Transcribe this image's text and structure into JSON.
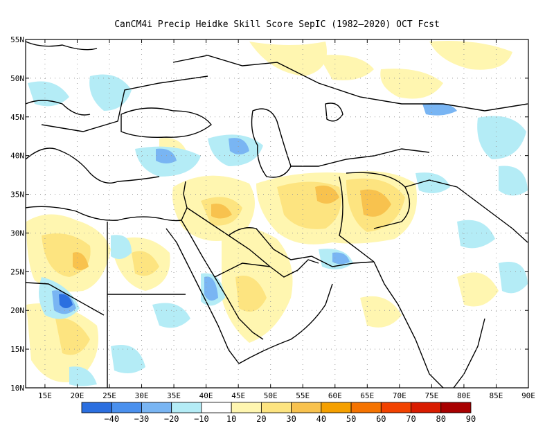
{
  "title": "CanCM4i Precip Heidke Skill Score SepIC (1982–2020) OCT Fcst",
  "map": {
    "lon_range": [
      12,
      90
    ],
    "lat_range": [
      10,
      55
    ],
    "lat_labels": [
      "55N",
      "50N",
      "45N",
      "40N",
      "35N",
      "30N",
      "25N",
      "20N",
      "15N",
      "10N"
    ],
    "lon_labels": [
      "15E",
      "20E",
      "25E",
      "30E",
      "35E",
      "40E",
      "45E",
      "50E",
      "55E",
      "60E",
      "65E",
      "70E",
      "75E",
      "80E",
      "85E",
      "90E"
    ]
  },
  "colorbar": {
    "labels": [
      "−40",
      "−30",
      "−20",
      "−10",
      "10",
      "20",
      "30",
      "40",
      "50",
      "60",
      "70",
      "80",
      "90"
    ],
    "colors": [
      "#2b6fe0",
      "#4a90ee",
      "#79b5f3",
      "#b4ecf6",
      "#ffffff",
      "#fff6b0",
      "#fde480",
      "#f8c24e",
      "#f5a000",
      "#f57300",
      "#f24200",
      "#d91c00",
      "#a80000"
    ]
  },
  "colors": {
    "land_outline": "#000000",
    "grid": "#9a9a9a",
    "neg_light": "#b4ecf6",
    "neg_mid": "#79b5f3",
    "neg_strong": "#2b6fe0",
    "pos_light": "#fff6b0",
    "pos_mid": "#fde480",
    "pos_strong": "#f8c24e"
  }
}
